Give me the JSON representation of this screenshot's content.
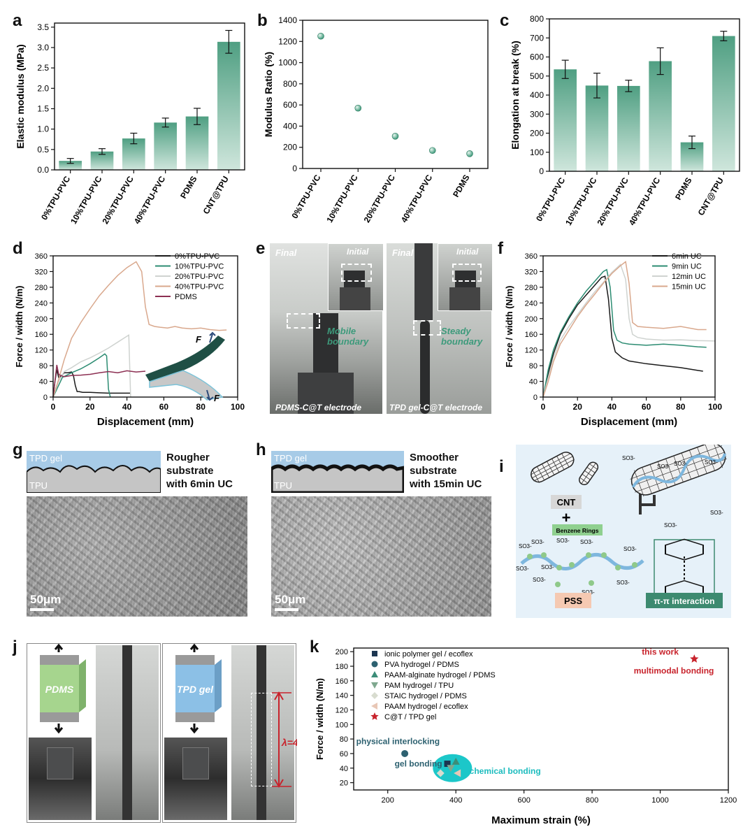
{
  "panels": {
    "a": {
      "label": "a"
    },
    "b": {
      "label": "b"
    },
    "c": {
      "label": "c"
    },
    "d": {
      "label": "d"
    },
    "e": {
      "label": "e",
      "final": "Final",
      "initial": "Initial",
      "mobile": "Mobile boundary",
      "steady": "Steady boundary",
      "left_caption": "PDMS-C@T electrode",
      "right_caption": "TPD gel-C@T electrode"
    },
    "f": {
      "label": "f"
    },
    "g": {
      "label": "g",
      "top": "TPD gel",
      "bottom": "TPU",
      "desc": [
        "Rougher",
        "substrate",
        "with 6min UC"
      ],
      "scale": "50μm"
    },
    "h": {
      "label": "h",
      "top": "TPD gel",
      "bottom": "TPU",
      "desc": [
        "Smoother",
        "substrate",
        "with 15min UC"
      ],
      "scale": "50μm"
    },
    "i": {
      "label": "i",
      "cnt": "CNT",
      "plus": "+",
      "benzene": "Benzene Rings",
      "pss": "PSS",
      "pipi": "π-π interaction",
      "so3": "SO3-"
    },
    "j": {
      "label": "j",
      "pdms": "PDMS",
      "tpd": "TPD gel",
      "lambda": "λ=4"
    },
    "k": {
      "label": "k"
    }
  },
  "chart_data": [
    {
      "id": "a",
      "type": "bar",
      "categories": [
        "0%TPU-PVC",
        "10%TPU-PVC",
        "20%TPU-PVC",
        "40%TPU-PVC",
        "PDMS",
        "CNT@TPU"
      ],
      "values": [
        0.22,
        0.45,
        0.77,
        1.16,
        1.31,
        3.14
      ],
      "errors": [
        0.06,
        0.07,
        0.13,
        0.11,
        0.2,
        0.28
      ],
      "ylabel": "Elastic modulus (MPa)",
      "ylim": [
        0,
        3.6
      ],
      "yticks": [
        "0.0",
        "0.5",
        "1.0",
        "1.5",
        "2.0",
        "2.5",
        "3.0",
        "3.5"
      ],
      "color": "#4f9f82"
    },
    {
      "id": "b",
      "type": "scatter",
      "categories": [
        "0%TPU-PVC",
        "10%TPU-PVC",
        "20%TPU-PVC",
        "40%TPU-PVC",
        "PDMS"
      ],
      "values": [
        1250,
        570,
        305,
        170,
        140
      ],
      "ylabel": "Modulus Ratio (%)",
      "ylim": [
        0,
        1400
      ],
      "yticks": [
        "0",
        "200",
        "400",
        "600",
        "800",
        "1000",
        "1200",
        "1400"
      ],
      "color": "#3f9b7c"
    },
    {
      "id": "c",
      "type": "bar",
      "categories": [
        "0%TPU-PVC",
        "10%TPU-PVC",
        "20%TPU-PVC",
        "40%TPU-PVC",
        "PDMS",
        "CNT@TPU"
      ],
      "values": [
        535,
        450,
        448,
        578,
        152,
        710
      ],
      "errors": [
        48,
        65,
        30,
        70,
        33,
        25
      ],
      "ylabel": "Elongation at break (%)",
      "ylim": [
        0,
        800
      ],
      "yticks": [
        "0",
        "100",
        "200",
        "300",
        "400",
        "500",
        "600",
        "700",
        "800"
      ],
      "color": "#4f9f82"
    },
    {
      "id": "d",
      "type": "line",
      "xlabel": "Displacement (mm)",
      "ylabel": "Force / width (N/m)",
      "xlim": [
        0,
        100
      ],
      "ylim": [
        0,
        360
      ],
      "xticks": [
        "0",
        "20",
        "40",
        "60",
        "80",
        "100"
      ],
      "yticks": [
        "0",
        "40",
        "80",
        "120",
        "160",
        "200",
        "240",
        "280",
        "320",
        "360"
      ],
      "series": [
        {
          "name": "0%TPU-PVC",
          "color": "#1a1a1a",
          "x": [
            0,
            1,
            2,
            3,
            4,
            6,
            8,
            10,
            11,
            12,
            13,
            14,
            16,
            20,
            25,
            30,
            35,
            40,
            41,
            42
          ],
          "y": [
            0,
            40,
            70,
            50,
            52,
            62,
            62,
            64,
            55,
            30,
            14,
            14,
            12,
            12,
            11,
            10,
            10,
            10,
            10,
            10
          ]
        },
        {
          "name": "10%TPU-PVC",
          "color": "#2c8c72",
          "x": [
            0,
            2,
            5,
            10,
            15,
            20,
            25,
            28,
            29,
            30,
            31
          ],
          "y": [
            0,
            20,
            50,
            62,
            72,
            85,
            100,
            110,
            105,
            20,
            0
          ]
        },
        {
          "name": "20%TPU-PVC",
          "color": "#cfd3d0",
          "x": [
            0,
            3,
            6,
            10,
            15,
            20,
            25,
            30,
            35,
            40,
            41,
            42
          ],
          "y": [
            0,
            40,
            65,
            75,
            90,
            100,
            112,
            125,
            140,
            155,
            158,
            0
          ]
        },
        {
          "name": "40%TPU-PVC",
          "color": "#d9a88d",
          "x": [
            0,
            3,
            6,
            10,
            15,
            20,
            25,
            30,
            35,
            40,
            45,
            48,
            50,
            52,
            55,
            58,
            62,
            66,
            70,
            75,
            80,
            85,
            90,
            94
          ],
          "y": [
            0,
            45,
            95,
            150,
            190,
            225,
            258,
            285,
            310,
            330,
            345,
            320,
            230,
            185,
            180,
            178,
            176,
            180,
            176,
            174,
            176,
            172,
            170,
            171
          ]
        },
        {
          "name": "PDMS",
          "color": "#8c2f52",
          "x": [
            0,
            2,
            3,
            4,
            6,
            10,
            15,
            20,
            25,
            30,
            35,
            40,
            45,
            50
          ],
          "y": [
            0,
            82,
            58,
            55,
            52,
            55,
            56,
            58,
            62,
            65,
            62,
            67,
            64,
            66
          ]
        }
      ]
    },
    {
      "id": "f",
      "type": "line",
      "xlabel": "Displacement (mm)",
      "ylabel": "Force / width (N/m)",
      "xlim": [
        0,
        100
      ],
      "ylim": [
        0,
        360
      ],
      "xticks": [
        "0",
        "20",
        "40",
        "60",
        "80",
        "100"
      ],
      "yticks": [
        "0",
        "40",
        "80",
        "120",
        "160",
        "200",
        "240",
        "280",
        "320",
        "360"
      ],
      "series": [
        {
          "name": "6min UC",
          "color": "#1a1a1a",
          "x": [
            0,
            3,
            6,
            10,
            15,
            20,
            25,
            30,
            34,
            36,
            38,
            40,
            42,
            46,
            50,
            60,
            70,
            80,
            90,
            93
          ],
          "y": [
            0,
            60,
            110,
            160,
            200,
            235,
            260,
            285,
            305,
            308,
            250,
            150,
            115,
            100,
            92,
            85,
            80,
            75,
            68,
            66
          ]
        },
        {
          "name": "9min UC",
          "color": "#2c8c72",
          "x": [
            0,
            3,
            6,
            10,
            15,
            20,
            25,
            30,
            35,
            37,
            39,
            41,
            43,
            46,
            50,
            60,
            70,
            80,
            90,
            95
          ],
          "y": [
            0,
            70,
            120,
            165,
            205,
            240,
            270,
            295,
            320,
            325,
            280,
            170,
            145,
            138,
            135,
            132,
            135,
            132,
            128,
            127
          ]
        },
        {
          "name": "12min UC",
          "color": "#cfd3d0",
          "x": [
            0,
            3,
            6,
            10,
            15,
            20,
            25,
            30,
            35,
            40,
            45,
            48,
            50,
            52,
            55,
            60,
            70,
            80,
            90,
            100
          ],
          "y": [
            0,
            50,
            100,
            145,
            180,
            210,
            240,
            268,
            292,
            318,
            338,
            300,
            200,
            160,
            152,
            148,
            145,
            146,
            144,
            143
          ]
        },
        {
          "name": "15min UC",
          "color": "#d9a88d",
          "x": [
            0,
            3,
            6,
            10,
            15,
            20,
            25,
            30,
            35,
            40,
            45,
            48,
            50,
            52,
            55,
            60,
            70,
            80,
            90,
            95
          ],
          "y": [
            0,
            40,
            90,
            135,
            170,
            205,
            235,
            262,
            290,
            315,
            335,
            345,
            290,
            190,
            180,
            178,
            175,
            180,
            172,
            172
          ]
        }
      ]
    },
    {
      "id": "k",
      "type": "scatter",
      "xlabel": "Maximum strain (%)",
      "ylabel": "Force / width (N/m)",
      "xlim": [
        100,
        1200
      ],
      "ylim": [
        10,
        205
      ],
      "xticks": [
        "200",
        "400",
        "600",
        "800",
        "1000",
        "1200"
      ],
      "yticks": [
        "20",
        "40",
        "60",
        "80",
        "100",
        "120",
        "140",
        "160",
        "180",
        "200"
      ],
      "series": [
        {
          "name": "ionic polymer gel / ecoflex",
          "marker": "square",
          "color": "#1c3550",
          "x": [
            375
          ],
          "y": [
            46
          ]
        },
        {
          "name": "PVA hydrogel / PDMS",
          "marker": "circle",
          "color": "#2d6170",
          "x": [
            250
          ],
          "y": [
            60
          ]
        },
        {
          "name": "PAAM-alginate hydrogel / PDMS",
          "marker": "triangle-up",
          "color": "#3c8d78",
          "x": [
            400
          ],
          "y": [
            49
          ]
        },
        {
          "name": "PAM hydrogel / TPU",
          "marker": "triangle-down",
          "color": "#7fa88f",
          "x": [
            385
          ],
          "y": [
            40
          ]
        },
        {
          "name": "STAIC hydrogel / PDMS",
          "marker": "diamond",
          "color": "#d8dccf",
          "x": [
            355
          ],
          "y": [
            33
          ]
        },
        {
          "name": "PAAM hydrogel / ecoflex",
          "marker": "triangle-left",
          "color": "#e8c7b6",
          "x": [
            405
          ],
          "y": [
            33
          ]
        },
        {
          "name": "C@T / TPD gel",
          "marker": "star",
          "color": "#c8232c",
          "x": [
            1100
          ],
          "y": [
            190
          ]
        }
      ],
      "annotations": {
        "this_work": "this work",
        "multimodal": "multimodal bonding",
        "physical": "physical interlocking",
        "gel": "gel bonding",
        "chemical": "chemical bonding"
      }
    }
  ]
}
